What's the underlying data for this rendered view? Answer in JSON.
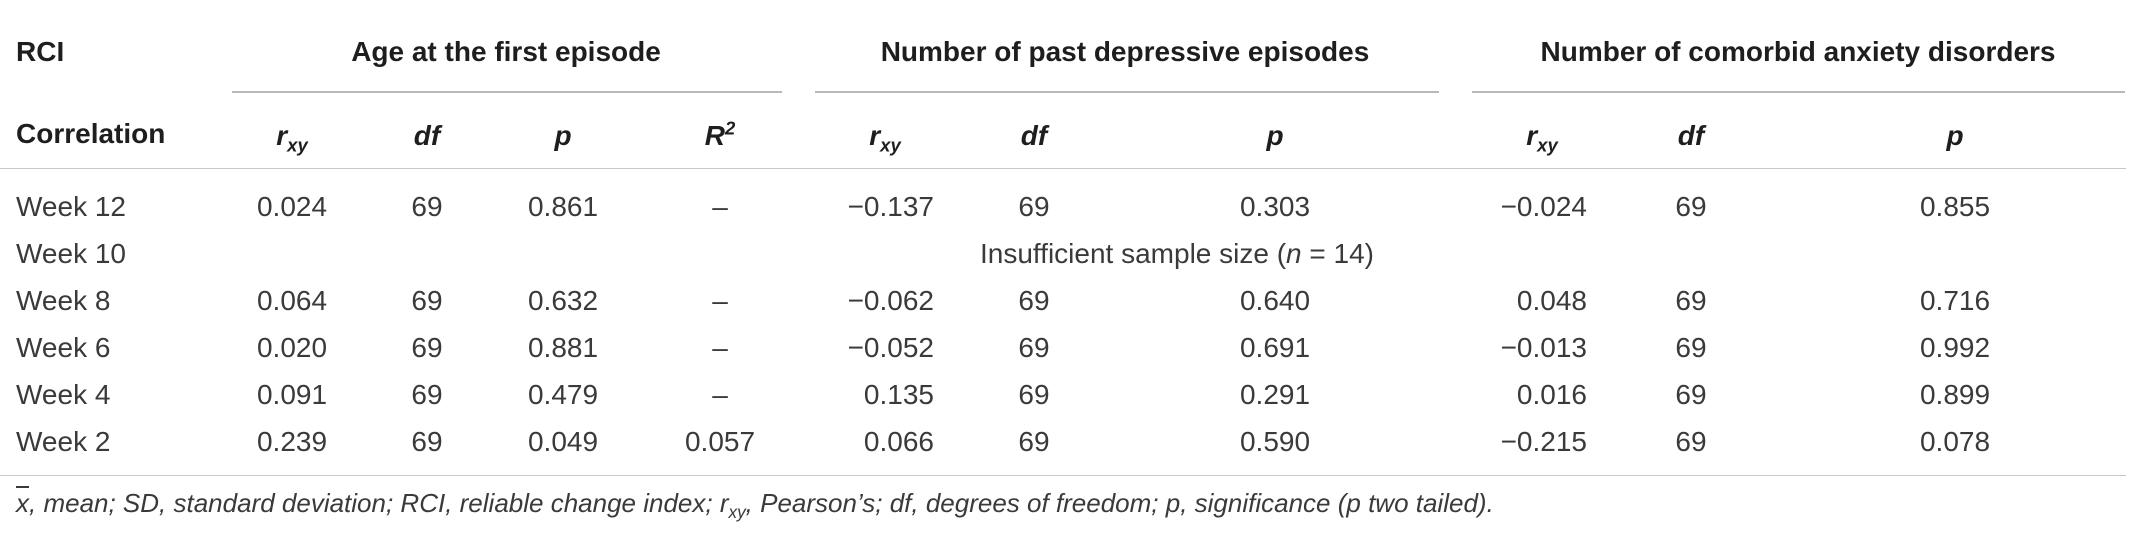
{
  "header": {
    "rci": "RCI",
    "correlation": "Correlation",
    "groups": [
      "Age at the first episode",
      "Number of past depressive episodes",
      "Number of comorbid anxiety disorders"
    ],
    "r_main": "r",
    "r_sub": "xy",
    "df": "df",
    "p": "p",
    "R_main": "R",
    "R_sup": "2"
  },
  "rows": [
    {
      "label": "Week 12",
      "age": [
        "0.024",
        "69",
        "0.861",
        "–"
      ],
      "past": [
        "−0.137",
        "69",
        "0.303"
      ],
      "anx": [
        "−0.024",
        "69",
        "0.855"
      ]
    },
    {
      "label": "Week 8",
      "age": [
        "0.064",
        "69",
        "0.632",
        "–"
      ],
      "past": [
        "−0.062",
        "69",
        "0.640"
      ],
      "anx": [
        "0.048",
        "69",
        "0.716"
      ]
    },
    {
      "label": "Week 6",
      "age": [
        "0.020",
        "69",
        "0.881",
        "–"
      ],
      "past": [
        "−0.052",
        "69",
        "0.691"
      ],
      "anx": [
        "−0.013",
        "69",
        "0.992"
      ]
    },
    {
      "label": "Week 4",
      "age": [
        "0.091",
        "69",
        "0.479",
        "–"
      ],
      "past": [
        "0.135",
        "69",
        "0.291"
      ],
      "anx": [
        "0.016",
        "69",
        "0.899"
      ]
    },
    {
      "label": "Week 2",
      "age": [
        "0.239",
        "69",
        "0.049",
        "0.057"
      ],
      "past": [
        "0.066",
        "69",
        "0.590"
      ],
      "anx": [
        "−0.215",
        "69",
        "0.078"
      ]
    }
  ],
  "week10": {
    "label": "Week 10",
    "note_pre": "Insufficient sample size (",
    "note_n": "n",
    "note_post": " = 14)"
  },
  "footnote": {
    "xbar": "x",
    "p1": ", mean; SD, standard deviation; RCI, reliable change index; r",
    "p1_sub": "xy",
    "p2": ", Pearson’s; df, degrees of freedom; p, significance (p two tailed)."
  }
}
